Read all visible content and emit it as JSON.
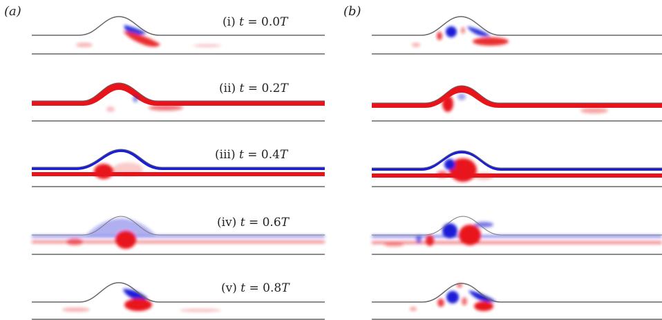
{
  "panels": [
    {
      "id": "a",
      "label": "(a)"
    },
    {
      "id": "b",
      "label": "(b)"
    }
  ],
  "time_labels": [
    {
      "roman": "(i)",
      "var": "t",
      "eq": "= 0.0",
      "unit": "T"
    },
    {
      "roman": "(ii)",
      "var": "t",
      "eq": "= 0.2",
      "unit": "T"
    },
    {
      "roman": "(iii)",
      "var": "t",
      "eq": "= 0.4",
      "unit": "T"
    },
    {
      "roman": "(iv)",
      "var": "t",
      "eq": "= 0.6",
      "unit": "T"
    },
    {
      "roman": "(v)",
      "var": "t",
      "eq": "= 0.8",
      "unit": "T"
    }
  ],
  "colors": {
    "positive_vorticity": "#e8141b",
    "negative_vorticity": "#1a1fd6",
    "wall": "#666666",
    "background": "#ffffff"
  }
}
